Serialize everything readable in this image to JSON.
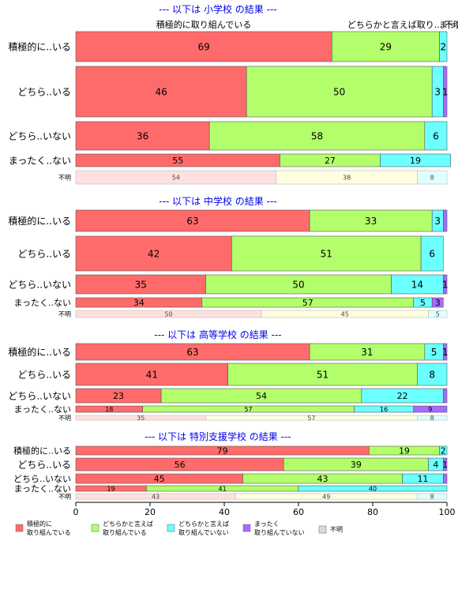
{
  "colors": {
    "series": [
      "#FF6B6B",
      "#B3FF6B",
      "#6BFFFF",
      "#A66BFF",
      "#D9D9D9"
    ],
    "unknown_row": [
      "#FFE0E0",
      "#FFFFE0",
      "#E0FFFF",
      "#E8E0FF",
      "#F0F0F0"
    ],
    "section_title": "#0000EE"
  },
  "header_labels": [
    "積極的に取り組んでいる",
    "どちらかと言えば取り...",
    "まった",
    "不明"
  ],
  "chart_data": {
    "type": "bar",
    "orientation": "horizontal",
    "stacked": true,
    "xlim": [
      0,
      100
    ],
    "xticks": [
      0,
      20,
      40,
      60,
      80,
      100
    ],
    "series_names": [
      "積極的に\n取り組んでいる",
      "どちらかと言えば\n取り組んでいる",
      "どちらかと言えば\n取り組んでいない",
      "まったく\n取り組んでいない",
      "不明"
    ],
    "legend_placement": "bottom",
    "panels": [
      {
        "title": "--- 以下は 小学校 の結果 ---",
        "rows": [
          {
            "label": "積極的に..いる",
            "values": [
              69,
              29,
              2,
              0,
              0
            ],
            "text": [
              "69",
              "29",
              "2",
              "",
              ""
            ]
          },
          {
            "label": "どちら..いる",
            "values": [
              46,
              50,
              3,
              1,
              0
            ],
            "text": [
              "46",
              "50",
              "3",
              "1",
              ""
            ]
          },
          {
            "label": "どちら..いない",
            "values": [
              36,
              58,
              6,
              0,
              0
            ],
            "text": [
              "36",
              "58",
              "6",
              "",
              ""
            ]
          },
          {
            "label": "まったく..ない",
            "values": [
              55,
              27,
              19,
              0,
              0
            ],
            "text": [
              "55",
              "27",
              "19",
              "",
              ""
            ]
          },
          {
            "label": "不明",
            "values": [
              54,
              38,
              8,
              0,
              0
            ],
            "text": [
              "54",
              "38",
              "8",
              "",
              ""
            ]
          }
        ]
      },
      {
        "title": "--- 以下は 中学校 の結果 ---",
        "rows": [
          {
            "label": "積極的に..いる",
            "values": [
              63,
              33,
              3,
              1,
              0
            ],
            "text": [
              "63",
              "33",
              "3",
              "",
              ""
            ]
          },
          {
            "label": "どちら..いる",
            "values": [
              42,
              51,
              6,
              0,
              0
            ],
            "text": [
              "42",
              "51",
              "6",
              "",
              ""
            ]
          },
          {
            "label": "どちら..いない",
            "values": [
              35,
              50,
              14,
              1,
              0
            ],
            "text": [
              "35",
              "50",
              "14",
              "1",
              ""
            ]
          },
          {
            "label": "まったく..ない",
            "values": [
              34,
              57,
              5,
              3,
              0
            ],
            "text": [
              "34",
              "57",
              "5",
              "3",
              ""
            ]
          },
          {
            "label": "不明",
            "values": [
              50,
              45,
              5,
              0,
              0
            ],
            "text": [
              "50",
              "45",
              "5",
              "",
              ""
            ]
          }
        ]
      },
      {
        "title": "--- 以下は 高等学校 の結果 ---",
        "rows": [
          {
            "label": "積極的に..いる",
            "values": [
              63,
              31,
              5,
              1,
              0
            ],
            "text": [
              "63",
              "31",
              "5",
              "1",
              ""
            ]
          },
          {
            "label": "どちら..いる",
            "values": [
              41,
              51,
              8,
              0,
              0
            ],
            "text": [
              "41",
              "51",
              "8",
              "",
              ""
            ]
          },
          {
            "label": "どちら..いない",
            "values": [
              23,
              54,
              22,
              1,
              0
            ],
            "text": [
              "23",
              "54",
              "22",
              "",
              ""
            ]
          },
          {
            "label": "まったく..ない",
            "values": [
              18,
              57,
              16,
              9,
              0
            ],
            "text": [
              "18",
              "57",
              "16",
              "9",
              ""
            ]
          },
          {
            "label": "不明",
            "values": [
              35,
              57,
              8,
              0,
              0
            ],
            "text": [
              "35",
              "57",
              "8",
              "",
              ""
            ]
          }
        ]
      },
      {
        "title": "--- 以下は 特別支援学校 の結果 ---",
        "rows": [
          {
            "label": "積極的に..いる",
            "values": [
              79,
              19,
              2,
              0,
              0
            ],
            "text": [
              "79",
              "19",
              "2",
              "",
              ""
            ]
          },
          {
            "label": "どちら..いる",
            "values": [
              56,
              39,
              4,
              1,
              0
            ],
            "text": [
              "56",
              "39",
              "4",
              "1",
              ""
            ]
          },
          {
            "label": "どちら..いない",
            "values": [
              45,
              43,
              11,
              1,
              0
            ],
            "text": [
              "45",
              "43",
              "11",
              "",
              ""
            ]
          },
          {
            "label": "まったく..ない",
            "values": [
              19,
              41,
              40,
              0,
              0
            ],
            "text": [
              "19",
              "41",
              "40",
              "",
              ""
            ]
          },
          {
            "label": "不明",
            "values": [
              43,
              49,
              8,
              0,
              0
            ],
            "text": [
              "43",
              "49",
              "8",
              "",
              ""
            ]
          }
        ]
      }
    ]
  }
}
